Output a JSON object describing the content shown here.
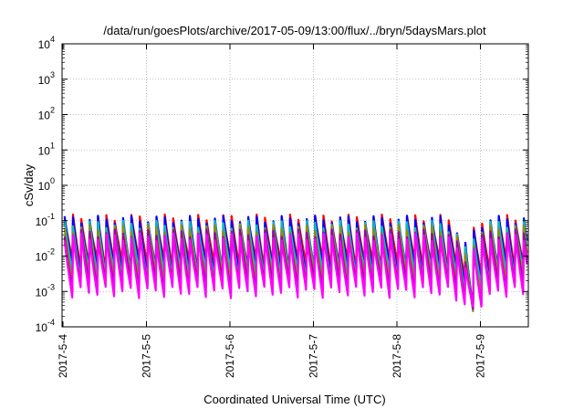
{
  "chart_data": {
    "type": "line",
    "title": "/data/run/goesPlots/archive/2017-05-09/13:00/flux/../bryn/5daysMars.plot",
    "xlabel": "Coordinated Universal Time (UTC)",
    "ylabel": "cSv/day",
    "yscale": "log",
    "ylim": [
      0.0001,
      10000
    ],
    "xlim_days": [
      0,
      5.6
    ],
    "x_ticks": [
      "2017-5-4",
      "2017-5-5",
      "2017-5-6",
      "2017-5-7",
      "2017-5-8",
      "2017-5-9"
    ],
    "y_ticks": [
      {
        "base": "10",
        "exp": "-4"
      },
      {
        "base": "10",
        "exp": "-3"
      },
      {
        "base": "10",
        "exp": "-2"
      },
      {
        "base": "10",
        "exp": "-1"
      },
      {
        "base": "10",
        "exp": "0"
      },
      {
        "base": "10",
        "exp": "1"
      },
      {
        "base": "10",
        "exp": "2"
      },
      {
        "base": "10",
        "exp": "3"
      },
      {
        "base": "10",
        "exp": "4"
      }
    ],
    "grid": true,
    "legend": "none",
    "pattern": {
      "description": "Sawtooth cycles repeating roughly 10 times per day",
      "cycles_per_day": 10,
      "peak": 0.1,
      "trough_min_series": 0.0012,
      "dip_near": "2017-5-8 ~20:00",
      "dip_min": 0.00015
    },
    "series": [
      {
        "color": "#ff0000",
        "peak": 0.12,
        "trough": 0.006
      },
      {
        "color": "#0000ff",
        "peak": 0.11,
        "trough": 0.004
      },
      {
        "color": "#00bfbf",
        "peak": 0.08,
        "trough": 0.003
      },
      {
        "color": "#8f8f00",
        "peak": 0.06,
        "trough": 0.002
      },
      {
        "color": "#a000a0",
        "peak": 0.045,
        "trough": 0.0015
      },
      {
        "color": "#ff00ff",
        "peak": 0.035,
        "trough": 0.001
      }
    ]
  }
}
